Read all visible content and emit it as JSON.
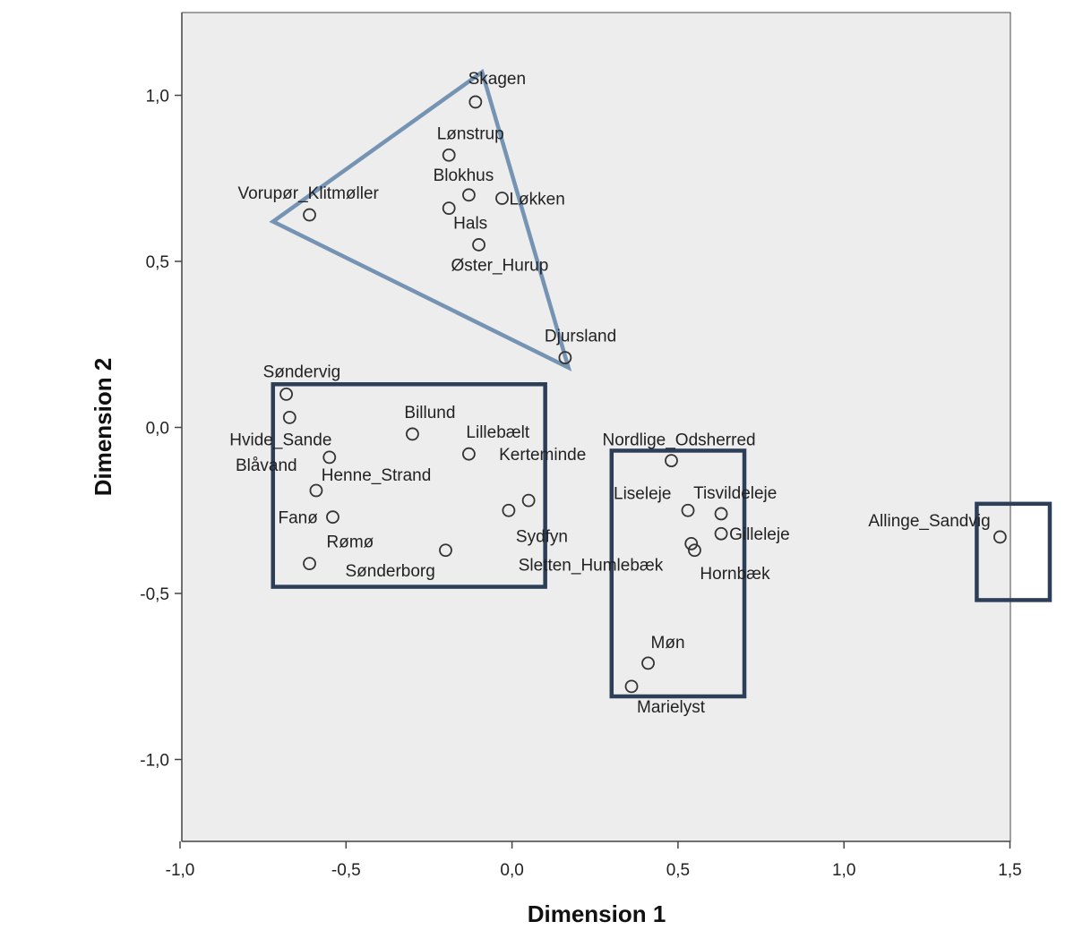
{
  "chart_data": {
    "type": "scatter",
    "xlabel": "Dimension 1",
    "ylabel": "Dimension 2",
    "xlim": [
      -1.0,
      1.5
    ],
    "ylim": [
      -1.25,
      1.25
    ],
    "xticks": [
      -1.0,
      -0.5,
      0.0,
      0.5,
      1.0,
      1.5
    ],
    "xtick_labels": [
      "-1,0",
      "-0,5",
      "0,0",
      "0,5",
      "1,0",
      "1,5"
    ],
    "yticks": [
      1.0,
      0.5,
      0.0,
      -0.5,
      -1.0
    ],
    "ytick_labels": [
      "1,0",
      "0,5",
      "0,0",
      "-0,5",
      "-1,0"
    ],
    "grid": false,
    "background": "#ededed",
    "points": [
      {
        "label": "Skagen",
        "x": -0.11,
        "y": 0.98
      },
      {
        "label": "Lønstrup",
        "x": -0.19,
        "y": 0.82
      },
      {
        "label": "Blokhus",
        "x": -0.13,
        "y": 0.7
      },
      {
        "label": "Løkken",
        "x": -0.03,
        "y": 0.69
      },
      {
        "label": "Vorupør_Klitmøller",
        "x": -0.61,
        "y": 0.64
      },
      {
        "label": "Hals",
        "x": -0.19,
        "y": 0.66
      },
      {
        "label": "Øster_Hurup",
        "x": -0.1,
        "y": 0.55
      },
      {
        "label": "Djursland",
        "x": 0.16,
        "y": 0.21
      },
      {
        "label": "Søndervig",
        "x": -0.68,
        "y": 0.1
      },
      {
        "label": "Hvide_Sande",
        "x": -0.67,
        "y": 0.03
      },
      {
        "label": "Billund",
        "x": -0.3,
        "y": -0.02
      },
      {
        "label": "Lillebælt",
        "x": -0.13,
        "y": -0.08
      },
      {
        "label": "Henne_Strand",
        "x": -0.55,
        "y": -0.09
      },
      {
        "label": "Blåvand",
        "x": -0.59,
        "y": -0.19
      },
      {
        "label": "Kerteminde",
        "x": 0.05,
        "y": -0.22
      },
      {
        "label": "Sydfyn",
        "x": -0.01,
        "y": -0.25
      },
      {
        "label": "Fanø",
        "x": -0.54,
        "y": -0.27
      },
      {
        "label": "Rømø",
        "x": -0.61,
        "y": -0.41
      },
      {
        "label": "Sønderborg",
        "x": -0.2,
        "y": -0.37
      },
      {
        "label": "Nordlige_Odsherred",
        "x": 0.48,
        "y": -0.1
      },
      {
        "label": "Liseleje",
        "x": 0.53,
        "y": -0.25
      },
      {
        "label": "Tisvildeleje",
        "x": 0.63,
        "y": -0.26
      },
      {
        "label": "Gilleleje",
        "x": 0.63,
        "y": -0.32
      },
      {
        "label": "Sletten_Humlebæk",
        "x": 0.54,
        "y": -0.35
      },
      {
        "label": "Hornbæk",
        "x": 0.55,
        "y": -0.37
      },
      {
        "label": "Møn",
        "x": 0.41,
        "y": -0.71
      },
      {
        "label": "Marielyst",
        "x": 0.36,
        "y": -0.78
      },
      {
        "label": "Allinge_Sandvig",
        "x": 1.47,
        "y": -0.33
      }
    ],
    "annotations": [
      {
        "shape": "triangle",
        "color": "#7593b3",
        "vertices": [
          [
            -0.09,
            1.07
          ],
          [
            -0.72,
            0.62
          ],
          [
            0.17,
            0.18
          ]
        ]
      },
      {
        "shape": "rectangle",
        "color": "#2c3e58",
        "x0": -0.72,
        "x1": 0.1,
        "y0": -0.48,
        "y1": 0.13
      },
      {
        "shape": "rectangle",
        "color": "#2c3e58",
        "x0": 0.3,
        "x1": 0.7,
        "y0": -0.81,
        "y1": -0.07
      },
      {
        "shape": "rectangle",
        "color": "#2c3e58",
        "x0": 1.4,
        "x1": 1.62,
        "y0": -0.52,
        "y1": -0.23
      }
    ]
  }
}
